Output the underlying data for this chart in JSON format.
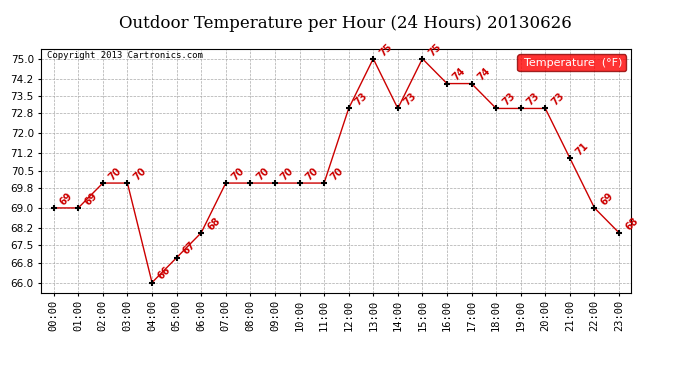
{
  "title": "Outdoor Temperature per Hour (24 Hours) 20130626",
  "copyright_text": "Copyright 2013 Cartronics.com",
  "legend_label": "Temperature  (°F)",
  "hours": [
    0,
    1,
    2,
    3,
    4,
    5,
    6,
    7,
    8,
    9,
    10,
    11,
    12,
    13,
    14,
    15,
    16,
    17,
    18,
    19,
    20,
    21,
    22,
    23
  ],
  "temperatures": [
    69,
    69,
    70,
    70,
    66,
    67,
    68,
    70,
    70,
    70,
    70,
    70,
    73,
    75,
    73,
    75,
    74,
    74,
    73,
    73,
    73,
    71,
    69,
    68
  ],
  "yticks": [
    66.0,
    66.8,
    67.5,
    68.2,
    69.0,
    69.8,
    70.5,
    71.2,
    72.0,
    72.8,
    73.5,
    74.2,
    75.0
  ],
  "ylim": [
    65.6,
    75.4
  ],
  "xlim": [
    -0.5,
    23.5
  ],
  "line_color": "#cc0000",
  "marker_color": "black",
  "label_color": "#cc0000",
  "background_color": "white",
  "grid_color": "#aaaaaa",
  "title_fontsize": 12,
  "tick_fontsize": 7.5,
  "annot_fontsize": 7,
  "copyright_fontsize": 6.5,
  "legend_fontsize": 8
}
